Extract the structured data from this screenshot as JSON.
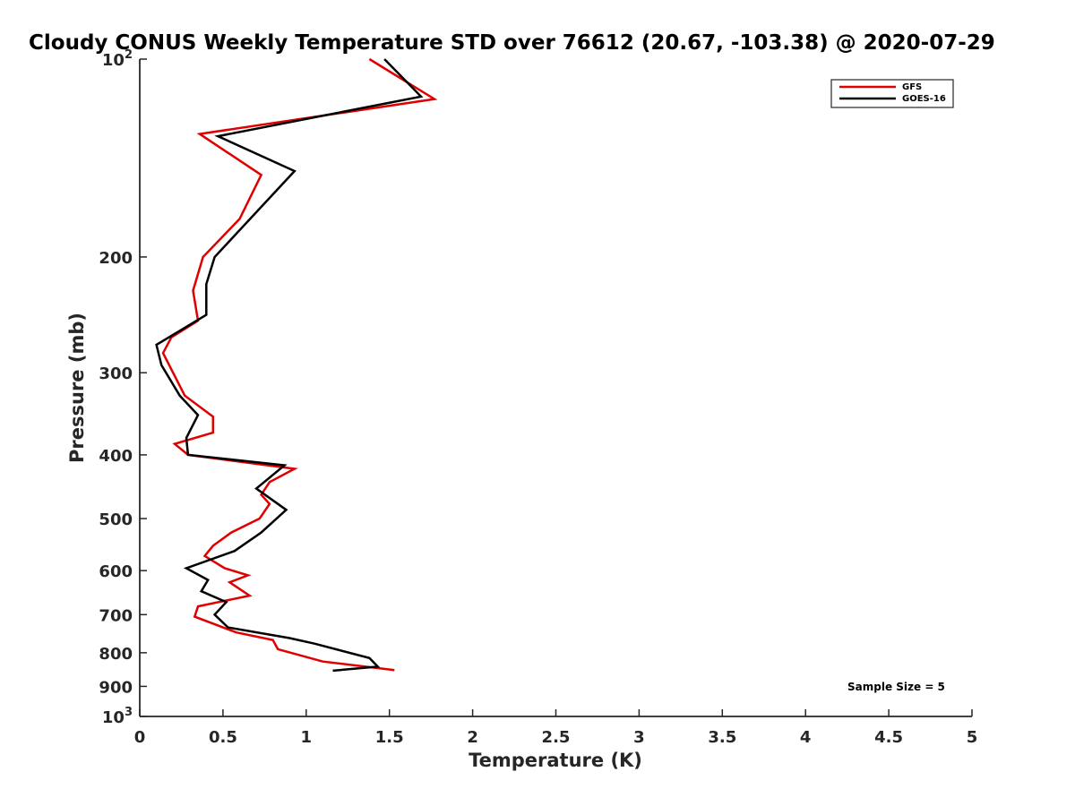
{
  "chart_data": {
    "type": "line",
    "title": "Cloudy CONUS Weekly Temperature STD over 76612 (20.67, -103.38) @ 2020-07-29",
    "xlabel": "Temperature (K)",
    "ylabel": "Pressure (mb)",
    "xlim": [
      0,
      5
    ],
    "ylim": [
      100,
      1000
    ],
    "y_scale": "log",
    "y_reversed": true,
    "x_ticks": [
      0,
      0.5,
      1,
      1.5,
      2,
      2.5,
      3,
      3.5,
      4,
      4.5,
      5
    ],
    "x_tick_labels": [
      "0",
      "0.5",
      "1",
      "1.5",
      "2",
      "2.5",
      "3",
      "3.5",
      "4",
      "4.5",
      "5"
    ],
    "y_ticks": [
      100,
      200,
      300,
      400,
      500,
      600,
      700,
      800,
      900,
      1000
    ],
    "y_tick_labels": [
      {
        "base": "10",
        "exp": "2"
      },
      {
        "text": "200"
      },
      {
        "text": "300"
      },
      {
        "text": "400"
      },
      {
        "text": "500"
      },
      {
        "text": "600"
      },
      {
        "text": "700"
      },
      {
        "text": "800"
      },
      {
        "text": "900"
      },
      {
        "base": "10",
        "exp": "3"
      }
    ],
    "grid": false,
    "legend_position": "top-right",
    "annotation": "Sample Size = 5",
    "series": [
      {
        "name": "GFS",
        "color": "#e00000",
        "points": [
          {
            "x": 1.38,
            "p": 100
          },
          {
            "x": 1.77,
            "p": 115
          },
          {
            "x": 0.36,
            "p": 130
          },
          {
            "x": 0.73,
            "p": 150
          },
          {
            "x": 0.6,
            "p": 175
          },
          {
            "x": 0.38,
            "p": 200
          },
          {
            "x": 0.32,
            "p": 225
          },
          {
            "x": 0.35,
            "p": 250
          },
          {
            "x": 0.19,
            "p": 265
          },
          {
            "x": 0.14,
            "p": 280
          },
          {
            "x": 0.27,
            "p": 325
          },
          {
            "x": 0.44,
            "p": 350
          },
          {
            "x": 0.44,
            "p": 370
          },
          {
            "x": 0.21,
            "p": 385
          },
          {
            "x": 0.29,
            "p": 400
          },
          {
            "x": 0.93,
            "p": 420
          },
          {
            "x": 0.78,
            "p": 440
          },
          {
            "x": 0.73,
            "p": 460
          },
          {
            "x": 0.78,
            "p": 475
          },
          {
            "x": 0.72,
            "p": 500
          },
          {
            "x": 0.55,
            "p": 525
          },
          {
            "x": 0.44,
            "p": 550
          },
          {
            "x": 0.39,
            "p": 570
          },
          {
            "x": 0.51,
            "p": 595
          },
          {
            "x": 0.65,
            "p": 610
          },
          {
            "x": 0.54,
            "p": 625
          },
          {
            "x": 0.66,
            "p": 655
          },
          {
            "x": 0.35,
            "p": 680
          },
          {
            "x": 0.33,
            "p": 705
          },
          {
            "x": 0.58,
            "p": 745
          },
          {
            "x": 0.8,
            "p": 765
          },
          {
            "x": 0.83,
            "p": 790
          },
          {
            "x": 1.1,
            "p": 825
          },
          {
            "x": 1.53,
            "p": 850
          }
        ]
      },
      {
        "name": "GOES-16",
        "color": "#000000",
        "points": [
          {
            "x": 1.47,
            "p": 100
          },
          {
            "x": 1.69,
            "p": 114
          },
          {
            "x": 0.47,
            "p": 131
          },
          {
            "x": 0.93,
            "p": 148
          },
          {
            "x": 0.45,
            "p": 200
          },
          {
            "x": 0.4,
            "p": 220
          },
          {
            "x": 0.4,
            "p": 245
          },
          {
            "x": 0.1,
            "p": 272
          },
          {
            "x": 0.13,
            "p": 292
          },
          {
            "x": 0.24,
            "p": 325
          },
          {
            "x": 0.35,
            "p": 348
          },
          {
            "x": 0.28,
            "p": 377
          },
          {
            "x": 0.29,
            "p": 400
          },
          {
            "x": 0.87,
            "p": 415
          },
          {
            "x": 0.7,
            "p": 450
          },
          {
            "x": 0.88,
            "p": 485
          },
          {
            "x": 0.73,
            "p": 525
          },
          {
            "x": 0.57,
            "p": 560
          },
          {
            "x": 0.28,
            "p": 595
          },
          {
            "x": 0.41,
            "p": 620
          },
          {
            "x": 0.37,
            "p": 645
          },
          {
            "x": 0.52,
            "p": 670
          },
          {
            "x": 0.45,
            "p": 700
          },
          {
            "x": 0.53,
            "p": 732
          },
          {
            "x": 0.9,
            "p": 760
          },
          {
            "x": 1.05,
            "p": 775
          },
          {
            "x": 1.38,
            "p": 815
          },
          {
            "x": 1.43,
            "p": 840
          },
          {
            "x": 1.16,
            "p": 852
          }
        ]
      }
    ]
  }
}
